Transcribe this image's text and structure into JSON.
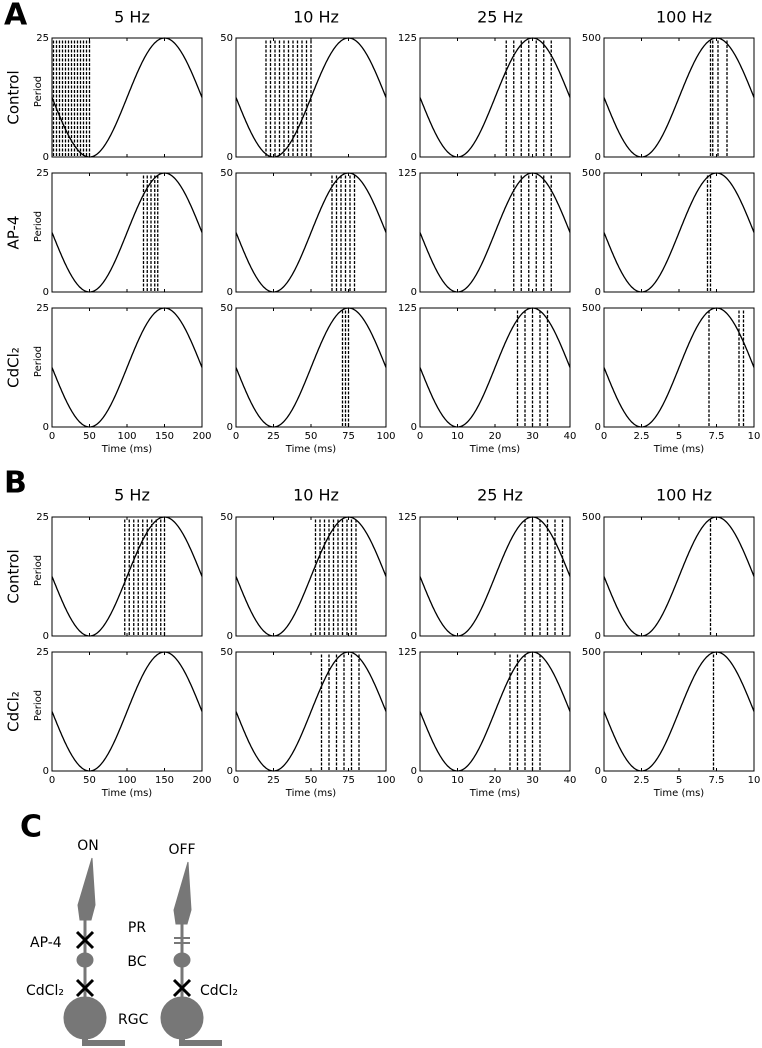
{
  "panels": [
    {
      "letter": "A",
      "columns": [
        {
          "title": "5 Hz",
          "xlim": [
            0,
            200
          ],
          "xticks": [
            0,
            50,
            100,
            150,
            200
          ],
          "xlabel": "Time (ms)"
        },
        {
          "title": "10 Hz",
          "xlim": [
            0,
            100
          ],
          "xticks": [
            0,
            25,
            50,
            75,
            100
          ],
          "xlabel": "Time (ms)"
        },
        {
          "title": "25 Hz",
          "xlim": [
            0,
            40
          ],
          "xticks": [
            0,
            10,
            20,
            30,
            40
          ],
          "xlabel": "Time (ms)"
        },
        {
          "title": "100 Hz",
          "xlim": [
            0,
            10
          ],
          "xticks": [
            0,
            2.5,
            5,
            7.5,
            10
          ],
          "xlabel": "Time (ms)"
        }
      ],
      "rows": [
        {
          "label": "Control",
          "ylabel": "Period",
          "plots": [
            {
              "yticks": [
                0,
                25
              ],
              "spikes": [
                2,
                6,
                10,
                14,
                18,
                22,
                26,
                30,
                34,
                38,
                42,
                46,
                50
              ]
            },
            {
              "yticks": [
                0,
                50
              ],
              "spikes": [
                20,
                23,
                26,
                29,
                32,
                35,
                38,
                41,
                44,
                47,
                50
              ]
            },
            {
              "yticks": [
                0,
                125
              ],
              "spikes": [
                23,
                25,
                27,
                29,
                31,
                33,
                35
              ]
            },
            {
              "yticks": [
                0,
                500
              ],
              "spikes": [
                7.1,
                7.25,
                7.6,
                8.2
              ]
            }
          ]
        },
        {
          "label": "AP-4",
          "ylabel": "Period",
          "plots": [
            {
              "yticks": [
                0,
                25
              ],
              "spikes": [
                122,
                127,
                132,
                137,
                141
              ]
            },
            {
              "yticks": [
                0,
                50
              ],
              "spikes": [
                64,
                67,
                70,
                73,
                76,
                79
              ]
            },
            {
              "yticks": [
                0,
                125
              ],
              "spikes": [
                25,
                27,
                29,
                31,
                33,
                35
              ]
            },
            {
              "yticks": [
                0,
                500
              ],
              "spikes": [
                6.9,
                7.1
              ]
            }
          ]
        },
        {
          "label": "CdCl₂",
          "ylabel": "Period",
          "plots": [
            {
              "yticks": [
                0,
                25
              ],
              "spikes": []
            },
            {
              "yticks": [
                0,
                50
              ],
              "spikes": [
                71,
                73,
                75
              ]
            },
            {
              "yticks": [
                0,
                125
              ],
              "spikes": [
                26,
                28,
                30,
                32,
                34
              ]
            },
            {
              "yticks": [
                0,
                500
              ],
              "spikes": [
                7.0,
                9.0,
                9.3
              ]
            }
          ]
        }
      ]
    },
    {
      "letter": "B",
      "columns": [
        {
          "title": "5 Hz",
          "xlim": [
            0,
            200
          ],
          "xticks": [
            0,
            50,
            100,
            150,
            200
          ],
          "xlabel": "Time (ms)"
        },
        {
          "title": "10 Hz",
          "xlim": [
            0,
            100
          ],
          "xticks": [
            0,
            25,
            50,
            75,
            100
          ],
          "xlabel": "Time (ms)"
        },
        {
          "title": "25 Hz",
          "xlim": [
            0,
            40
          ],
          "xticks": [
            0,
            10,
            20,
            30,
            40
          ],
          "xlabel": "Time (ms)"
        },
        {
          "title": "100 Hz",
          "xlim": [
            0,
            10
          ],
          "xticks": [
            0,
            2.5,
            5,
            7.5,
            10
          ],
          "xlabel": "Time (ms)"
        }
      ],
      "rows": [
        {
          "label": "Control",
          "ylabel": "Period",
          "plots": [
            {
              "yticks": [
                0,
                25
              ],
              "spikes": [
                97,
                103,
                109,
                115,
                121,
                127,
                133,
                139,
                145,
                150
              ]
            },
            {
              "yticks": [
                0,
                50
              ],
              "spikes": [
                53,
                56,
                59,
                62,
                65,
                68,
                71,
                74,
                77,
                80
              ]
            },
            {
              "yticks": [
                0,
                125
              ],
              "spikes": [
                28,
                30,
                32,
                34,
                36,
                38
              ]
            },
            {
              "yticks": [
                0,
                500
              ],
              "spikes": [
                7.1
              ]
            }
          ]
        },
        {
          "label": "CdCl₂",
          "ylabel": "Period",
          "plots": [
            {
              "yticks": [
                0,
                25
              ],
              "spikes": []
            },
            {
              "yticks": [
                0,
                50
              ],
              "spikes": [
                57,
                62,
                67,
                72,
                77,
                82
              ]
            },
            {
              "yticks": [
                0,
                125
              ],
              "spikes": [
                24,
                26,
                28,
                30,
                32
              ]
            },
            {
              "yticks": [
                0,
                500
              ],
              "spikes": [
                7.3
              ]
            }
          ]
        }
      ]
    }
  ],
  "diagram": {
    "letter": "C",
    "on": "ON",
    "off": "OFF",
    "pr": "PR",
    "ap4": "AP-4",
    "bc": "BC",
    "cdcl2_left": "CdCl₂",
    "cdcl2_right": "CdCl₂",
    "rgc": "RGC"
  }
}
